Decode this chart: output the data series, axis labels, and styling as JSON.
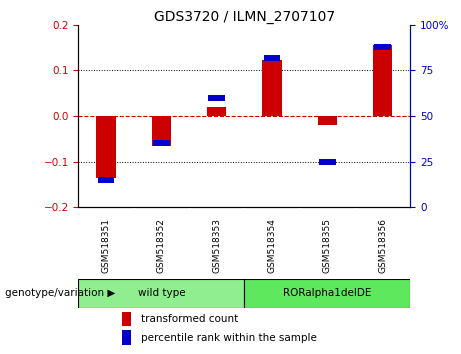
{
  "title": "GDS3720 / ILMN_2707107",
  "samples": [
    "GSM518351",
    "GSM518352",
    "GSM518353",
    "GSM518354",
    "GSM518355",
    "GSM518356"
  ],
  "red_values": [
    -0.135,
    -0.065,
    0.02,
    0.122,
    -0.02,
    0.155
  ],
  "blue_values_pct": [
    15,
    35,
    60,
    82,
    25,
    88
  ],
  "groups": [
    {
      "label": "wild type",
      "indices": [
        0,
        1,
        2
      ],
      "color": "#90EE90"
    },
    {
      "label": "RORalpha1delDE",
      "indices": [
        3,
        4,
        5
      ],
      "color": "#5EE85E"
    }
  ],
  "ylim": [
    -0.2,
    0.2
  ],
  "yticks_left": [
    -0.2,
    -0.1,
    0.0,
    0.1,
    0.2
  ],
  "yticks_right": [
    0,
    25,
    50,
    75,
    100
  ],
  "red_color": "#CC0000",
  "blue_color": "#0000CC",
  "bar_width": 0.35,
  "zero_line_color": "#CC0000",
  "grid_color": "#000000",
  "legend_labels": [
    "transformed count",
    "percentile rank within the sample"
  ],
  "group_label": "genotype/variation",
  "bg_color": "#FFFFFF",
  "plot_bg_color": "#FFFFFF",
  "sample_bg_color": "#C8C8C8"
}
